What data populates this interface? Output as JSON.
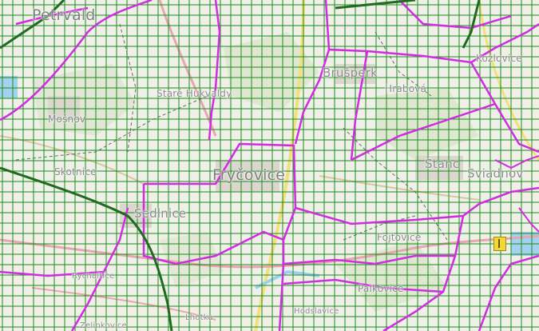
{
  "map": {
    "labels": {
      "petrvald": "Petrvald",
      "mosnov": "Mošnov",
      "skotnice": "Skotnice",
      "sedlnice": "Sedlnice",
      "brusperk": "Brušperk",
      "hrabova_small": "Hrabová",
      "stare_hukvaldy": "Staré Hukvaldy",
      "frycovice": "Fryčovice",
      "stanc": "Stanc",
      "sviadnov": "Sviadnov",
      "fojtovice": "Fojtovice",
      "rychaltice": "Rychaltice",
      "palkovice": "Palkovice",
      "hodslavice": "Hodslavice",
      "lhotka": "Lhotka",
      "zelinkovice": "Zelinkovice",
      "kozlovice": "Kozlovice"
    },
    "colors": {
      "grid_green": "#1e8a1e",
      "boundary_magenta": "#d02ce0",
      "dark_green_boundary": "#1f6b1f",
      "road_yellow": "#f3e07a",
      "road_pink": "#e8a6b0",
      "water_blue": "#9ad0ef",
      "forest": "#dde8cf",
      "settlement": "#d9d5cc"
    },
    "icons": {
      "poi_marker": "church-icon"
    }
  }
}
